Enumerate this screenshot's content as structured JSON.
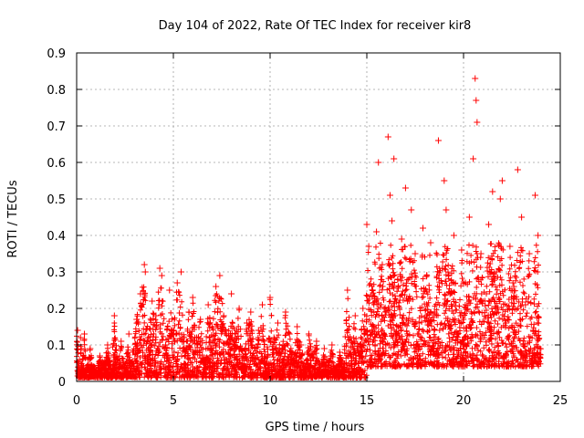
{
  "chart_data": {
    "type": "scatter",
    "title": "Day 104 of 2022, Rate Of TEC Index for receiver kir8",
    "xlabel": "GPS time / hours",
    "ylabel": "ROTI / TECUs",
    "xlim": [
      0,
      25
    ],
    "ylim": [
      0,
      0.9
    ],
    "xticks": [
      "0",
      "5",
      "10",
      "15",
      "20",
      "25"
    ],
    "yticks": [
      "0",
      "0.1",
      "0.2",
      "0.3",
      "0.4",
      "0.5",
      "0.6",
      "0.7",
      "0.8",
      "0.9"
    ],
    "grid": true,
    "marker": "+",
    "color": "#ff0000",
    "series": [
      {
        "name": "ROTI",
        "points": [
          [
            0.05,
            0.14
          ],
          [
            0.1,
            0.02
          ],
          [
            0.2,
            0.12
          ],
          [
            0.3,
            0.06
          ],
          [
            0.4,
            0.13
          ],
          [
            0.5,
            0.03
          ],
          [
            0.7,
            0.09
          ],
          [
            0.9,
            0.04
          ],
          [
            1.0,
            0.02
          ],
          [
            1.2,
            0.07
          ],
          [
            1.4,
            0.05
          ],
          [
            1.6,
            0.1
          ],
          [
            1.8,
            0.03
          ],
          [
            1.95,
            0.18
          ],
          [
            2.1,
            0.06
          ],
          [
            2.3,
            0.11
          ],
          [
            2.5,
            0.04
          ],
          [
            2.7,
            0.13
          ],
          [
            2.9,
            0.08
          ],
          [
            3.1,
            0.17
          ],
          [
            3.3,
            0.24
          ],
          [
            3.5,
            0.32
          ],
          [
            3.55,
            0.3
          ],
          [
            3.7,
            0.12
          ],
          [
            3.9,
            0.22
          ],
          [
            4.1,
            0.18
          ],
          [
            4.3,
            0.31
          ],
          [
            4.4,
            0.29
          ],
          [
            4.6,
            0.1
          ],
          [
            4.8,
            0.25
          ],
          [
            5.0,
            0.14
          ],
          [
            5.2,
            0.27
          ],
          [
            5.4,
            0.3
          ],
          [
            5.6,
            0.08
          ],
          [
            5.8,
            0.19
          ],
          [
            6.0,
            0.23
          ],
          [
            6.2,
            0.12
          ],
          [
            6.4,
            0.17
          ],
          [
            6.6,
            0.06
          ],
          [
            6.8,
            0.21
          ],
          [
            7.0,
            0.15
          ],
          [
            7.2,
            0.26
          ],
          [
            7.4,
            0.29
          ],
          [
            7.6,
            0.18
          ],
          [
            7.8,
            0.11
          ],
          [
            8.0,
            0.24
          ],
          [
            8.2,
            0.13
          ],
          [
            8.4,
            0.2
          ],
          [
            8.6,
            0.07
          ],
          [
            8.8,
            0.16
          ],
          [
            9.0,
            0.19
          ],
          [
            9.2,
            0.09
          ],
          [
            9.4,
            0.14
          ],
          [
            9.6,
            0.21
          ],
          [
            9.8,
            0.05
          ],
          [
            10.0,
            0.23
          ],
          [
            10.2,
            0.12
          ],
          [
            10.4,
            0.16
          ],
          [
            10.6,
            0.08
          ],
          [
            10.8,
            0.19
          ],
          [
            11.0,
            0.13
          ],
          [
            11.2,
            0.06
          ],
          [
            11.4,
            0.15
          ],
          [
            11.6,
            0.1
          ],
          [
            11.8,
            0.04
          ],
          [
            12.0,
            0.13
          ],
          [
            12.2,
            0.07
          ],
          [
            12.4,
            0.11
          ],
          [
            12.6,
            0.03
          ],
          [
            12.8,
            0.09
          ],
          [
            13.0,
            0.05
          ],
          [
            13.2,
            0.1
          ],
          [
            13.4,
            0.02
          ],
          [
            13.6,
            0.08
          ],
          [
            13.8,
            0.04
          ],
          [
            14.0,
            0.25
          ],
          [
            14.2,
            0.11
          ],
          [
            14.4,
            0.18
          ],
          [
            14.6,
            0.07
          ],
          [
            14.8,
            0.2
          ],
          [
            15.0,
            0.43
          ],
          [
            15.1,
            0.37
          ],
          [
            15.3,
            0.25
          ],
          [
            15.5,
            0.41
          ],
          [
            15.6,
            0.6
          ],
          [
            15.8,
            0.32
          ],
          [
            16.0,
            0.19
          ],
          [
            16.1,
            0.67
          ],
          [
            16.2,
            0.51
          ],
          [
            16.3,
            0.44
          ],
          [
            16.4,
            0.61
          ],
          [
            16.6,
            0.28
          ],
          [
            16.8,
            0.39
          ],
          [
            17.0,
            0.53
          ],
          [
            17.1,
            0.22
          ],
          [
            17.3,
            0.47
          ],
          [
            17.5,
            0.35
          ],
          [
            17.7,
            0.16
          ],
          [
            17.9,
            0.42
          ],
          [
            18.1,
            0.29
          ],
          [
            18.3,
            0.38
          ],
          [
            18.5,
            0.19
          ],
          [
            18.7,
            0.66
          ],
          [
            18.9,
            0.31
          ],
          [
            19.0,
            0.55
          ],
          [
            19.1,
            0.47
          ],
          [
            19.3,
            0.24
          ],
          [
            19.5,
            0.4
          ],
          [
            19.7,
            0.13
          ],
          [
            19.9,
            0.36
          ],
          [
            20.1,
            0.27
          ],
          [
            20.3,
            0.45
          ],
          [
            20.5,
            0.61
          ],
          [
            20.6,
            0.83
          ],
          [
            20.65,
            0.77
          ],
          [
            20.7,
            0.71
          ],
          [
            20.9,
            0.35
          ],
          [
            21.1,
            0.22
          ],
          [
            21.3,
            0.43
          ],
          [
            21.5,
            0.52
          ],
          [
            21.7,
            0.3
          ],
          [
            21.9,
            0.5
          ],
          [
            22.0,
            0.55
          ],
          [
            22.2,
            0.16
          ],
          [
            22.4,
            0.37
          ],
          [
            22.6,
            0.26
          ],
          [
            22.8,
            0.58
          ],
          [
            23.0,
            0.45
          ],
          [
            23.2,
            0.21
          ],
          [
            23.4,
            0.35
          ],
          [
            23.6,
            0.14
          ],
          [
            23.7,
            0.51
          ],
          [
            23.85,
            0.4
          ],
          [
            23.95,
            0.09
          ]
        ]
      }
    ]
  }
}
